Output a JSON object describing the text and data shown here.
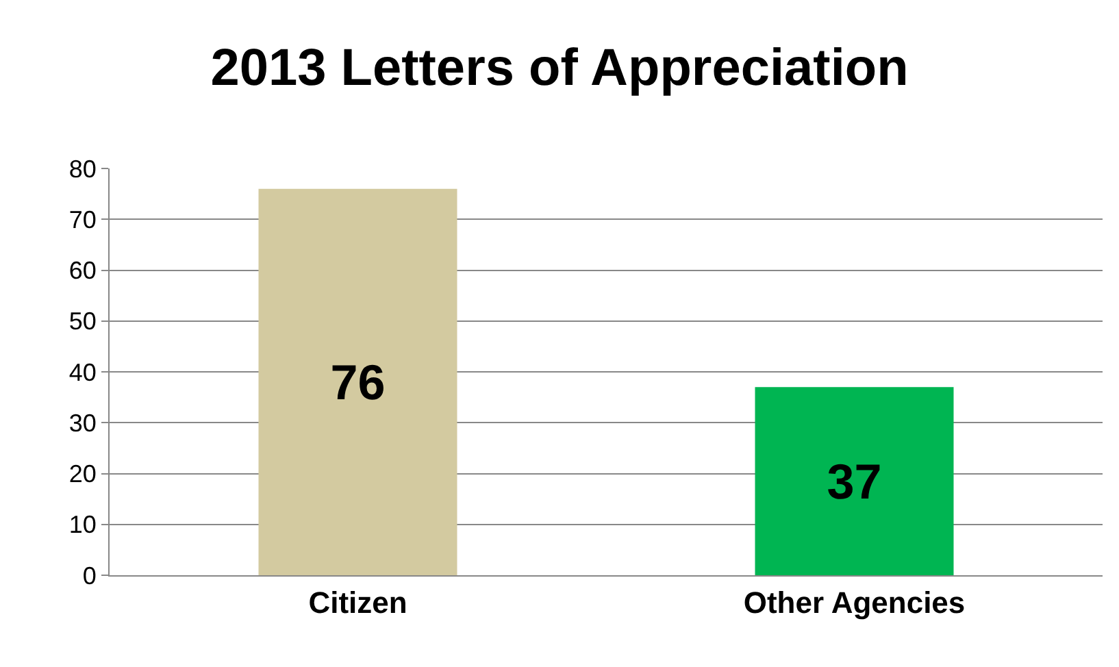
{
  "chart_data": {
    "type": "bar",
    "title": "2013 Letters of Appreciation",
    "categories": [
      "Citizen",
      "Other Agencies"
    ],
    "values": [
      76,
      37
    ],
    "colors": [
      "#d3caa0",
      "#00b552"
    ],
    "ylim": [
      0,
      80
    ],
    "yticks": [
      0,
      10,
      20,
      30,
      40,
      50,
      60,
      70,
      80
    ],
    "grid": "y",
    "data_labels": true
  }
}
